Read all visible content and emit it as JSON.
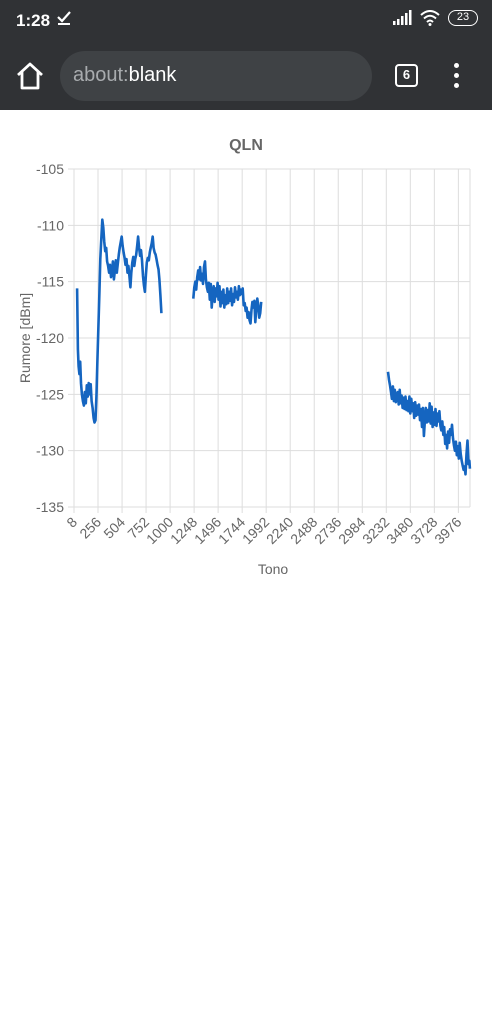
{
  "status_bar": {
    "time": "1:28",
    "battery": "23",
    "icons": [
      "check-icon",
      "signal-icon",
      "wifi-icon",
      "battery-icon"
    ]
  },
  "toolbar": {
    "url_scheme": "about:",
    "url_rest": "blank",
    "tab_count": "6",
    "icons": [
      "home-icon",
      "more-vert-icon"
    ]
  },
  "colors": {
    "toolbar_bg": "#303235",
    "series": "#1565c0",
    "grid": "#dddddd"
  },
  "chart_data": {
    "type": "line",
    "title": "QLN",
    "xlabel": "Tono",
    "ylabel": "Rumore [dBm]",
    "xlim": [
      8,
      4096
    ],
    "ylim": [
      -135,
      -105
    ],
    "x_ticks": [
      8,
      256,
      504,
      752,
      1000,
      1248,
      1496,
      1744,
      1992,
      2240,
      2488,
      2736,
      2984,
      3232,
      3480,
      3728,
      3976
    ],
    "y_ticks": [
      -105,
      -110,
      -115,
      -120,
      -125,
      -130,
      -135
    ],
    "grid": true,
    "legend": "none",
    "series": [
      {
        "segments": [
          [
            [
              40,
              -115.6
            ],
            [
              48,
              -121
            ],
            [
              56,
              -122.5
            ],
            [
              64,
              -123.2
            ],
            [
              72,
              -122.1
            ],
            [
              80,
              -124
            ],
            [
              90,
              -125
            ],
            [
              100,
              -125.6
            ],
            [
              110,
              -126
            ],
            [
              120,
              -124.8
            ],
            [
              130,
              -125.8
            ],
            [
              140,
              -124.2
            ],
            [
              150,
              -125.2
            ],
            [
              160,
              -124
            ],
            [
              170,
              -125
            ],
            [
              180,
              -124.1
            ],
            [
              190,
              -125.6
            ],
            [
              200,
              -126.2
            ],
            [
              210,
              -127.1
            ],
            [
              220,
              -127.5
            ],
            [
              230,
              -127.3
            ],
            [
              240,
              -125
            ],
            [
              250,
              -122
            ],
            [
              260,
              -119
            ],
            [
              270,
              -116
            ],
            [
              280,
              -113
            ],
            [
              290,
              -111.2
            ],
            [
              300,
              -109.5
            ],
            [
              310,
              -110.2
            ],
            [
              320,
              -111.4
            ],
            [
              330,
              -112.3
            ],
            [
              340,
              -112
            ],
            [
              350,
              -113.2
            ],
            [
              360,
              -113.6
            ],
            [
              370,
              -114.2
            ],
            [
              380,
              -113.5
            ],
            [
              390,
              -114.6
            ],
            [
              400,
              -114.1
            ],
            [
              410,
              -113.2
            ],
            [
              420,
              -114.8
            ],
            [
              430,
              -114
            ],
            [
              440,
              -113.1
            ],
            [
              450,
              -114.2
            ],
            [
              460,
              -113.4
            ],
            [
              470,
              -112.6
            ],
            [
              480,
              -112
            ],
            [
              490,
              -111.5
            ],
            [
              500,
              -111
            ],
            [
              510,
              -111.8
            ],
            [
              520,
              -112.4
            ],
            [
              530,
              -112.9
            ],
            [
              540,
              -113.5
            ],
            [
              550,
              -113
            ],
            [
              560,
              -114.2
            ],
            [
              570,
              -113.6
            ],
            [
              580,
              -114.5
            ],
            [
              590,
              -115.5
            ],
            [
              600,
              -114.2
            ],
            [
              610,
              -113.3
            ],
            [
              620,
              -112.8
            ],
            [
              630,
              -113.6
            ],
            [
              640,
              -113
            ],
            [
              650,
              -112.6
            ],
            [
              660,
              -111.8
            ],
            [
              670,
              -111
            ],
            [
              680,
              -112
            ],
            [
              690,
              -112.7
            ],
            [
              700,
              -112.2
            ],
            [
              710,
              -113.1
            ],
            [
              720,
              -114.5
            ],
            [
              730,
              -115.3
            ],
            [
              740,
              -115.9
            ],
            [
              750,
              -114.4
            ],
            [
              760,
              -113.3
            ],
            [
              770,
              -112.9
            ],
            [
              780,
              -113.1
            ],
            [
              790,
              -112.4
            ],
            [
              800,
              -112
            ],
            [
              810,
              -111.6
            ],
            [
              820,
              -111
            ],
            [
              830,
              -112
            ],
            [
              840,
              -112.4
            ],
            [
              850,
              -112.6
            ],
            [
              860,
              -113
            ],
            [
              870,
              -113.5
            ],
            [
              880,
              -113.9
            ],
            [
              890,
              -114.8
            ],
            [
              900,
              -116.2
            ],
            [
              910,
              -117.8
            ]
          ],
          [
            [
              1240,
              -116.5
            ],
            [
              1250,
              -115.5
            ],
            [
              1260,
              -115
            ],
            [
              1270,
              -115.7
            ],
            [
              1280,
              -114.6
            ],
            [
              1290,
              -114
            ],
            [
              1300,
              -114.8
            ],
            [
              1310,
              -113.7
            ],
            [
              1320,
              -114.9
            ],
            [
              1330,
              -114.3
            ],
            [
              1340,
              -115.2
            ],
            [
              1350,
              -113.7
            ],
            [
              1360,
              -113.2
            ],
            [
              1370,
              -114.8
            ],
            [
              1380,
              -115.5
            ],
            [
              1390,
              -115.9
            ],
            [
              1400,
              -115.1
            ],
            [
              1410,
              -116.6
            ],
            [
              1420,
              -115.2
            ],
            [
              1430,
              -117.3
            ],
            [
              1440,
              -116.1
            ],
            [
              1450,
              -115.4
            ],
            [
              1460,
              -116.8
            ],
            [
              1470,
              -115.6
            ],
            [
              1480,
              -116.3
            ],
            [
              1490,
              -115.1
            ],
            [
              1500,
              -116.6
            ],
            [
              1510,
              -115.4
            ],
            [
              1520,
              -117.2
            ],
            [
              1530,
              -115.9
            ],
            [
              1540,
              -116.9
            ],
            [
              1550,
              -115.7
            ],
            [
              1560,
              -117.3
            ],
            [
              1570,
              -116.2
            ],
            [
              1580,
              -117
            ],
            [
              1590,
              -115.6
            ],
            [
              1600,
              -116.9
            ],
            [
              1610,
              -115.9
            ],
            [
              1620,
              -116.7
            ],
            [
              1630,
              -115.6
            ],
            [
              1640,
              -117.1
            ],
            [
              1650,
              -116.1
            ],
            [
              1660,
              -116.8
            ],
            [
              1670,
              -115.5
            ],
            [
              1680,
              -116.4
            ],
            [
              1690,
              -115.9
            ],
            [
              1700,
              -116.6
            ],
            [
              1710,
              -115.4
            ],
            [
              1720,
              -116.2
            ],
            [
              1730,
              -115.7
            ],
            [
              1740,
              -116.1
            ],
            [
              1750,
              -115.6
            ],
            [
              1760,
              -117.1
            ],
            [
              1770,
              -116.9
            ],
            [
              1780,
              -117.6
            ],
            [
              1790,
              -117.3
            ],
            [
              1800,
              -118.2
            ],
            [
              1810,
              -117.7
            ],
            [
              1820,
              -118.4
            ],
            [
              1830,
              -118.7
            ],
            [
              1840,
              -117.5
            ],
            [
              1850,
              -116.8
            ],
            [
              1860,
              -117.3
            ],
            [
              1870,
              -116.7
            ],
            [
              1880,
              -118.6
            ],
            [
              1890,
              -117.4
            ],
            [
              1900,
              -116.5
            ],
            [
              1910,
              -117.1
            ],
            [
              1920,
              -118.2
            ],
            [
              1930,
              -117.8
            ],
            [
              1940,
              -116.8
            ]
          ],
          [
            [
              3250,
              -123
            ],
            [
              3260,
              -123.7
            ],
            [
              3270,
              -124.2
            ],
            [
              3280,
              -124.8
            ],
            [
              3290,
              -125.4
            ],
            [
              3300,
              -124.3
            ],
            [
              3310,
              -125.6
            ],
            [
              3320,
              -124.6
            ],
            [
              3330,
              -125.7
            ],
            [
              3340,
              -125.1
            ],
            [
              3350,
              -124.8
            ],
            [
              3360,
              -125.9
            ],
            [
              3370,
              -124.6
            ],
            [
              3380,
              -125.8
            ],
            [
              3390,
              -125.1
            ],
            [
              3400,
              -126.2
            ],
            [
              3410,
              -125.3
            ],
            [
              3420,
              -126.3
            ],
            [
              3430,
              -125.2
            ],
            [
              3440,
              -126.4
            ],
            [
              3450,
              -125.6
            ],
            [
              3460,
              -126.5
            ],
            [
              3470,
              -125.2
            ],
            [
              3480,
              -126.7
            ],
            [
              3490,
              -125.4
            ],
            [
              3500,
              -126.5
            ],
            [
              3510,
              -125.8
            ],
            [
              3520,
              -127.1
            ],
            [
              3530,
              -125.7
            ],
            [
              3540,
              -126.9
            ],
            [
              3550,
              -126
            ],
            [
              3560,
              -126.8
            ],
            [
              3570,
              -125.9
            ],
            [
              3580,
              -127.3
            ],
            [
              3590,
              -126.3
            ],
            [
              3600,
              -127.9
            ],
            [
              3610,
              -126.2
            ],
            [
              3620,
              -128.7
            ],
            [
              3630,
              -127.3
            ],
            [
              3640,
              -126.2
            ],
            [
              3650,
              -127.5
            ],
            [
              3660,
              -126.4
            ],
            [
              3670,
              -127.4
            ],
            [
              3680,
              -125.8
            ],
            [
              3690,
              -127.6
            ],
            [
              3700,
              -126.1
            ],
            [
              3710,
              -127.9
            ],
            [
              3720,
              -126.6
            ],
            [
              3730,
              -127.7
            ],
            [
              3740,
              -126.3
            ],
            [
              3750,
              -127.8
            ],
            [
              3760,
              -126.7
            ],
            [
              3770,
              -127.4
            ],
            [
              3780,
              -126.5
            ],
            [
              3790,
              -127.8
            ],
            [
              3800,
              -128.2
            ],
            [
              3810,
              -127.4
            ],
            [
              3820,
              -128.6
            ],
            [
              3830,
              -127.9
            ],
            [
              3840,
              -129.4
            ],
            [
              3850,
              -128.6
            ],
            [
              3860,
              -129.8
            ],
            [
              3870,
              -128.3
            ],
            [
              3880,
              -129.3
            ],
            [
              3890,
              -128.1
            ],
            [
              3900,
              -128.6
            ],
            [
              3910,
              -127.7
            ],
            [
              3920,
              -128.9
            ],
            [
              3930,
              -129.5
            ],
            [
              3940,
              -130
            ],
            [
              3950,
              -129.2
            ],
            [
              3960,
              -130.4
            ],
            [
              3970,
              -129.6
            ],
            [
              3980,
              -130.7
            ],
            [
              3990,
              -129.3
            ],
            [
              4000,
              -130.3
            ],
            [
              4010,
              -130.9
            ],
            [
              4020,
              -131.3
            ],
            [
              4030,
              -131.7
            ],
            [
              4040,
              -131.4
            ],
            [
              4050,
              -132.1
            ],
            [
              4060,
              -130.3
            ],
            [
              4070,
              -129.1
            ],
            [
              4080,
              -131.2
            ],
            [
              4090,
              -130.9
            ],
            [
              4095,
              -131.6
            ]
          ]
        ]
      }
    ]
  }
}
